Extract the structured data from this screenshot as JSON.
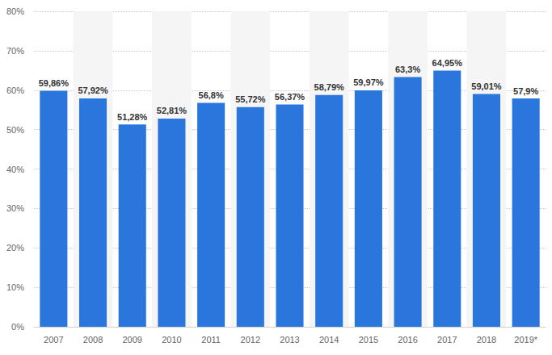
{
  "chart_data": {
    "type": "bar",
    "categories": [
      "2007",
      "2008",
      "2009",
      "2010",
      "2011",
      "2012",
      "2013",
      "2014",
      "2015",
      "2016",
      "2017",
      "2018",
      "2019*"
    ],
    "values": [
      59.86,
      57.92,
      51.28,
      52.81,
      56.8,
      55.72,
      56.37,
      58.79,
      59.97,
      63.3,
      64.95,
      59.01,
      57.9
    ],
    "value_labels": [
      "59,86%",
      "57,92%",
      "51,28%",
      "52,81%",
      "56,8%",
      "55,72%",
      "56,37%",
      "58,79%",
      "59,97%",
      "63,3%",
      "64,95%",
      "59,01%",
      "57,9%"
    ],
    "color": "#2b76dc",
    "ylim": [
      0,
      80
    ],
    "yticks": [
      {
        "value": 0,
        "label": "0%"
      },
      {
        "value": 10,
        "label": "10%"
      },
      {
        "value": 20,
        "label": "20%"
      },
      {
        "value": 30,
        "label": "30%"
      },
      {
        "value": 40,
        "label": "40%"
      },
      {
        "value": 50,
        "label": "50%"
      },
      {
        "value": 60,
        "label": "60%"
      },
      {
        "value": 70,
        "label": "70%"
      },
      {
        "value": 80,
        "label": "80%"
      }
    ],
    "grid": true,
    "data_labels": true
  }
}
